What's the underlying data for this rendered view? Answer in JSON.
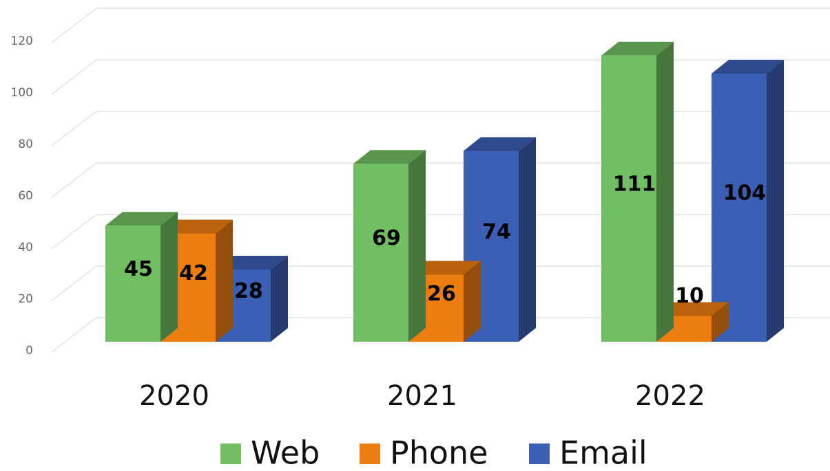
{
  "chart_data": {
    "type": "bar3d",
    "categories": [
      "2020",
      "2021",
      "2022"
    ],
    "series": [
      {
        "name": "Web",
        "color": "#72bf63",
        "values": [
          45,
          69,
          111
        ]
      },
      {
        "name": "Phone",
        "color": "#ed7d0e",
        "values": [
          42,
          26,
          10
        ]
      },
      {
        "name": "Email",
        "color": "#3b5fb5",
        "values": [
          28,
          74,
          104
        ]
      }
    ],
    "ylim": [
      0,
      120
    ],
    "yticks": [
      0,
      20,
      40,
      60,
      80,
      100,
      120
    ],
    "grid": true,
    "legend": "bottom"
  }
}
